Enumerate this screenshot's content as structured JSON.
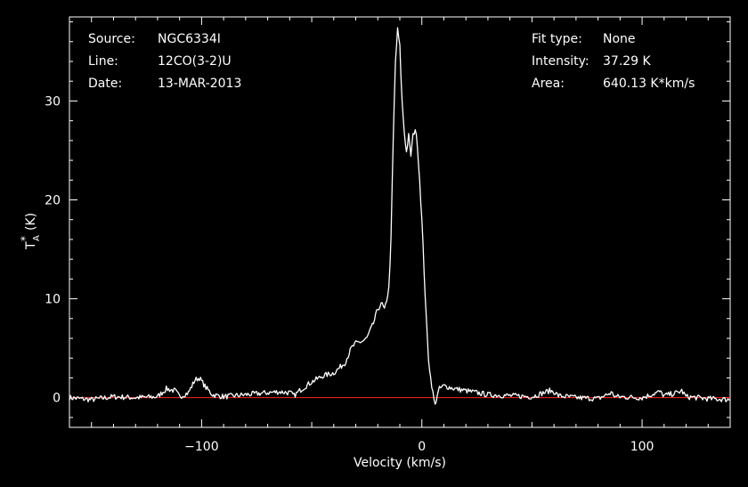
{
  "chart_data": {
    "type": "line",
    "title": "",
    "xlabel": "Velocity (km/s)",
    "ylabel": "T_A^* (K)",
    "xlim": [
      -160,
      140
    ],
    "ylim": [
      -3,
      38.5
    ],
    "x_ticks": [
      -100,
      0,
      100
    ],
    "y_ticks": [
      0,
      10,
      20,
      30
    ],
    "grid": false,
    "colors": {
      "background": "#000000",
      "axes": "#ffffff",
      "spectrum": "#ffffff",
      "baseline": "#ff2020"
    },
    "series": [
      {
        "color": "#ffffff",
        "points": [
          [
            -160,
            0.0
          ],
          [
            -150,
            -0.2
          ],
          [
            -140,
            0.1
          ],
          [
            -130,
            0.0
          ],
          [
            -120,
            0.1
          ],
          [
            -116,
            0.9
          ],
          [
            -112,
            0.7
          ],
          [
            -110,
            0.1
          ],
          [
            -106,
            0.5
          ],
          [
            -103,
            1.8
          ],
          [
            -101,
            2.0
          ],
          [
            -98,
            1.0
          ],
          [
            -95,
            0.3
          ],
          [
            -90,
            0.1
          ],
          [
            -85,
            0.2
          ],
          [
            -80,
            0.3
          ],
          [
            -75,
            0.4
          ],
          [
            -70,
            0.5
          ],
          [
            -65,
            0.6
          ],
          [
            -60,
            0.5
          ],
          [
            -58,
            0.2
          ],
          [
            -55,
            0.8
          ],
          [
            -50,
            1.6
          ],
          [
            -45,
            2.2
          ],
          [
            -40,
            2.5
          ],
          [
            -35,
            3.5
          ],
          [
            -32,
            5.0
          ],
          [
            -30,
            5.5
          ],
          [
            -27,
            5.7
          ],
          [
            -25,
            6.0
          ],
          [
            -22,
            7.5
          ],
          [
            -20,
            9.0
          ],
          [
            -18,
            9.5
          ],
          [
            -17,
            8.8
          ],
          [
            -15,
            11.0
          ],
          [
            -14,
            16.0
          ],
          [
            -13,
            26.0
          ],
          [
            -12,
            34.0
          ],
          [
            -11,
            37.2
          ],
          [
            -10,
            35.5
          ],
          [
            -9,
            30.0
          ],
          [
            -8,
            27.0
          ],
          [
            -7,
            24.8
          ],
          [
            -6,
            26.5
          ],
          [
            -5,
            24.5
          ],
          [
            -4,
            26.5
          ],
          [
            -3,
            27.2
          ],
          [
            -2,
            25.5
          ],
          [
            -1,
            22.0
          ],
          [
            0,
            18.0
          ],
          [
            1,
            13.0
          ],
          [
            2,
            8.0
          ],
          [
            3,
            4.0
          ],
          [
            4,
            2.0
          ],
          [
            5,
            0.5
          ],
          [
            6,
            -0.8
          ],
          [
            7,
            0.3
          ],
          [
            8,
            0.9
          ],
          [
            10,
            1.2
          ],
          [
            15,
            0.9
          ],
          [
            20,
            0.7
          ],
          [
            25,
            0.5
          ],
          [
            30,
            0.3
          ],
          [
            40,
            0.2
          ],
          [
            50,
            0.1
          ],
          [
            58,
            0.7
          ],
          [
            60,
            0.6
          ],
          [
            62,
            0.2
          ],
          [
            70,
            0.0
          ],
          [
            80,
            -0.1
          ],
          [
            86,
            0.5
          ],
          [
            88,
            0.1
          ],
          [
            100,
            0.0
          ],
          [
            108,
            0.6
          ],
          [
            110,
            0.2
          ],
          [
            116,
            0.5
          ],
          [
            118,
            0.7
          ],
          [
            120,
            0.1
          ],
          [
            130,
            -0.1
          ],
          [
            140,
            -0.2
          ]
        ]
      }
    ],
    "baseline": 0
  },
  "info_left": [
    {
      "label": "Source:",
      "value": "NGC6334I"
    },
    {
      "label": "Line:",
      "value": "12CO(3-2)U"
    },
    {
      "label": "Date:",
      "value": "13-MAR-2013"
    }
  ],
  "info_right": [
    {
      "label": "Fit type:",
      "value": "None"
    },
    {
      "label": "Intensity:",
      "value": "37.29 K"
    },
    {
      "label": "Area:",
      "value": "640.13 K*km/s"
    }
  ]
}
